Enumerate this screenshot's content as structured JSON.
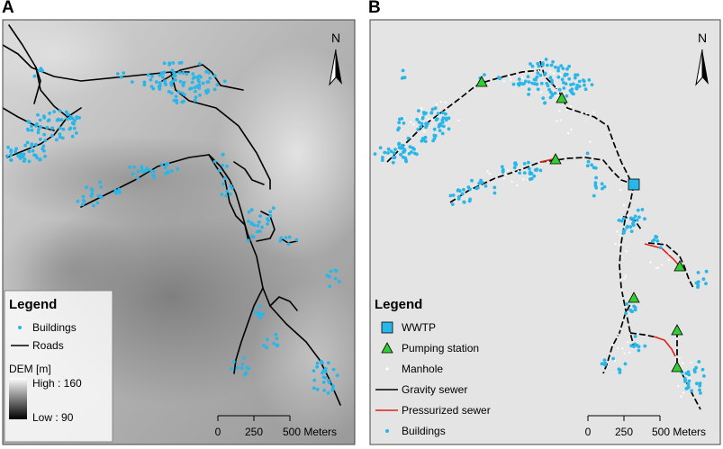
{
  "panels": [
    {
      "letter": "A",
      "north": "N",
      "legend": {
        "title": "Legend",
        "buildings": "Buildings",
        "roads": "Roads",
        "dem_title": "DEM [m]",
        "high": "High : 160",
        "low": "Low : 90"
      },
      "scale": [
        "0",
        "250",
        "500 Meters"
      ]
    },
    {
      "letter": "B",
      "north": "N",
      "legend": {
        "title": "Legend",
        "wwtp": "WWTP",
        "pumping": "Pumping station",
        "manhole": "Manhole",
        "gravity": "Gravity sewer",
        "pressurized": "Pressurized sewer",
        "buildings": "Buildings"
      },
      "scale": [
        "0",
        "250",
        "500 Meters"
      ]
    }
  ],
  "colors": {
    "buildings": "#29b6e8",
    "roads": "#000000",
    "gravity_sewer": "#000000",
    "pressurized_sewer": "#e0201b",
    "wwtp": "#29b6e8",
    "pumping_station": "#33cc33",
    "manhole": "#ffffff",
    "panel_b_bg": "#e4e4e4"
  },
  "dem_range_m": [
    90,
    160
  ]
}
